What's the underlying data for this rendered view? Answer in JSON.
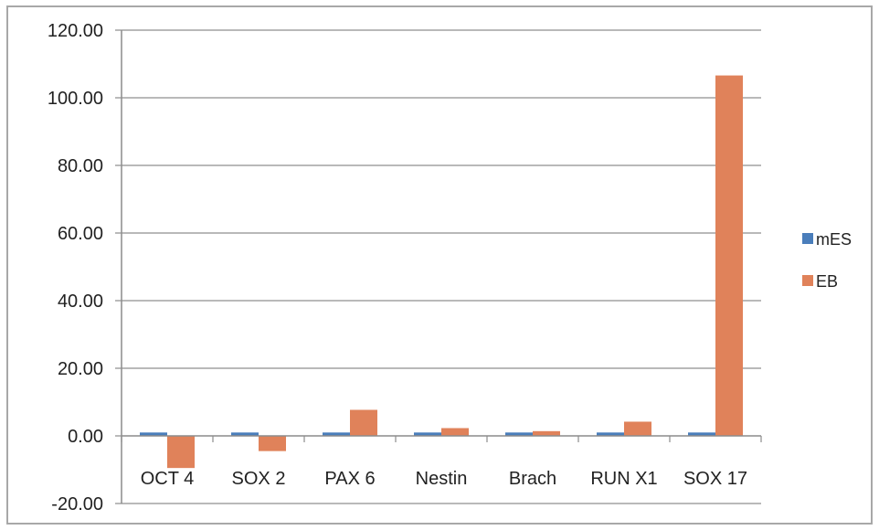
{
  "chart_data": {
    "type": "bar",
    "title": "",
    "xlabel": "",
    "ylabel": "",
    "categories": [
      "OCT 4",
      "SOX 2",
      "PAX 6",
      "Nestin",
      "Brach",
      "RUN X1",
      "SOX 17"
    ],
    "series": [
      {
        "name": "mES",
        "color": "#4a7ebb",
        "values": [
          1.0,
          1.0,
          1.0,
          1.0,
          1.0,
          1.0,
          1.0
        ]
      },
      {
        "name": "EB",
        "color": "#e0825a",
        "values": [
          -9.5,
          -4.5,
          7.7,
          2.3,
          1.4,
          4.2,
          106.6
        ]
      }
    ],
    "ylim": [
      -20,
      120
    ],
    "yticks": [
      "-20.00",
      "0.00",
      "20.00",
      "40.00",
      "60.00",
      "80.00",
      "100.00",
      "120.00"
    ],
    "grid": true,
    "legend": "right"
  }
}
